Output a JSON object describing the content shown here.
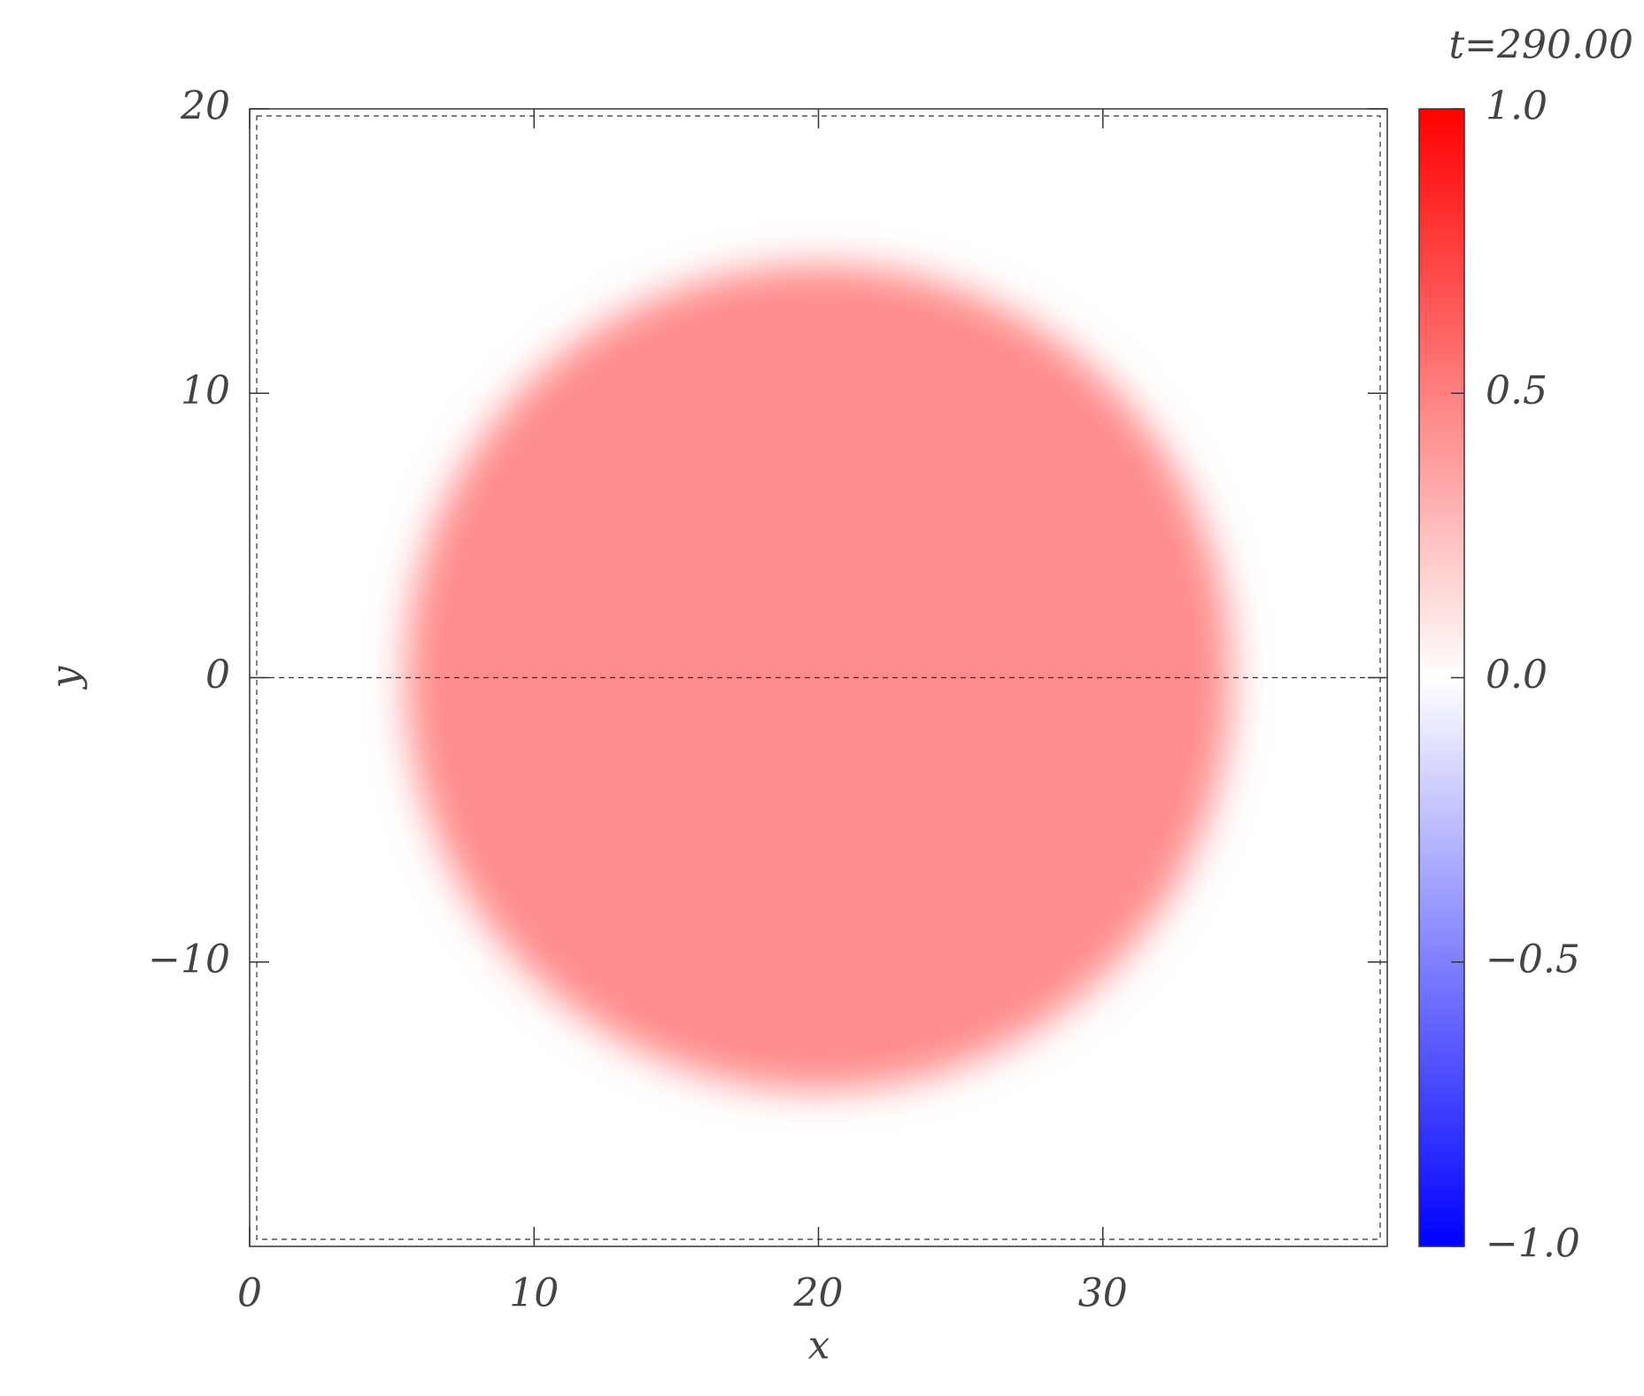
{
  "chart_data": {
    "type": "image",
    "title": "t=290.00",
    "xlabel": "x",
    "ylabel": "y",
    "xlim": [
      0,
      40
    ],
    "ylim": [
      -20,
      20
    ],
    "xticks": [
      0,
      10,
      20,
      30
    ],
    "yticks": [
      {
        "value": -10,
        "label": "−10"
      },
      0,
      10,
      20
    ],
    "hline": 0,
    "blob": {
      "x": 20,
      "y": 0,
      "r": 14.5,
      "value": 0.45
    },
    "colorbar": {
      "lim": [
        -1,
        1
      ],
      "colors": [
        "#0000ff",
        "#ffffff",
        "#ff0000"
      ],
      "ticks": [
        {
          "value": 1,
          "label": "1.0"
        },
        {
          "value": 0.5,
          "label": "0.5"
        },
        {
          "value": 0,
          "label": "0.0"
        },
        {
          "value": -0.5,
          "label": "−0.5"
        },
        {
          "value": -1,
          "label": "−1.0"
        }
      ]
    }
  }
}
